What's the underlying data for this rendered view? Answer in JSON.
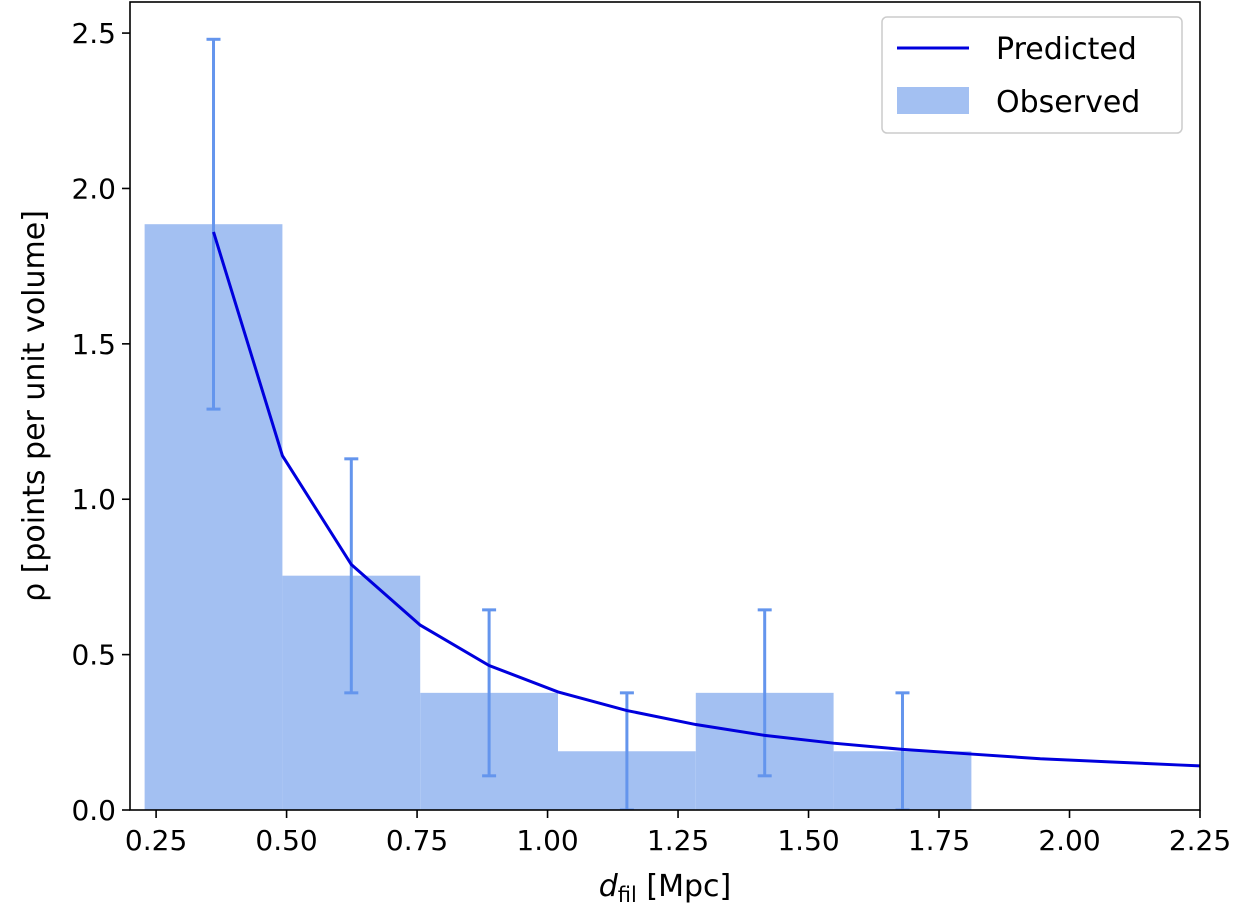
{
  "chart_data": {
    "type": "bar",
    "title": "",
    "xlabel_main": "d",
    "xlabel_sub": "fil",
    "xlabel_unit": " [Mpc]",
    "ylabel": "ρ [points per unit volume]",
    "xlim": [
      0.2,
      2.25
    ],
    "ylim": [
      0,
      2.6
    ],
    "xticks": [
      0.25,
      0.5,
      0.75,
      1.0,
      1.25,
      1.5,
      1.75,
      2.0,
      2.25
    ],
    "xtick_labels": [
      "0.25",
      "0.50",
      "0.75",
      "1.00",
      "1.25",
      "1.50",
      "1.75",
      "2.00",
      "2.25"
    ],
    "yticks": [
      0,
      0.5,
      1.0,
      1.5,
      2.0,
      2.5
    ],
    "ytick_labels": [
      "0.0",
      "0.5",
      "1.0",
      "1.5",
      "2.0",
      "2.5"
    ],
    "grid": false,
    "legend_placement": "top-right",
    "legend": {
      "predicted": "Predicted",
      "observed": "Observed"
    },
    "colors": {
      "predicted": "#0000dd",
      "observed": "#a3c0f2",
      "errorbar": "#6495ed"
    },
    "observed": {
      "bin_edges": [
        0.228,
        0.492,
        0.756,
        1.02,
        1.284,
        1.548,
        1.812
      ],
      "values": [
        1.885,
        0.754,
        0.377,
        0.189,
        0.377,
        0.189
      ],
      "err_low": [
        1.29,
        0.377,
        0.11,
        0.0,
        0.11,
        0.0
      ],
      "err_high": [
        2.48,
        1.13,
        0.644,
        0.377,
        0.644,
        0.377
      ]
    },
    "predicted": {
      "x": [
        0.36,
        0.492,
        0.624,
        0.756,
        0.888,
        1.02,
        1.152,
        1.284,
        1.416,
        1.548,
        1.68,
        1.812,
        1.944,
        2.076,
        2.208,
        2.34
      ],
      "y": [
        1.86,
        1.14,
        0.79,
        0.595,
        0.465,
        0.38,
        0.32,
        0.275,
        0.24,
        0.215,
        0.195,
        0.18,
        0.165,
        0.155,
        0.145,
        0.135
      ]
    }
  }
}
